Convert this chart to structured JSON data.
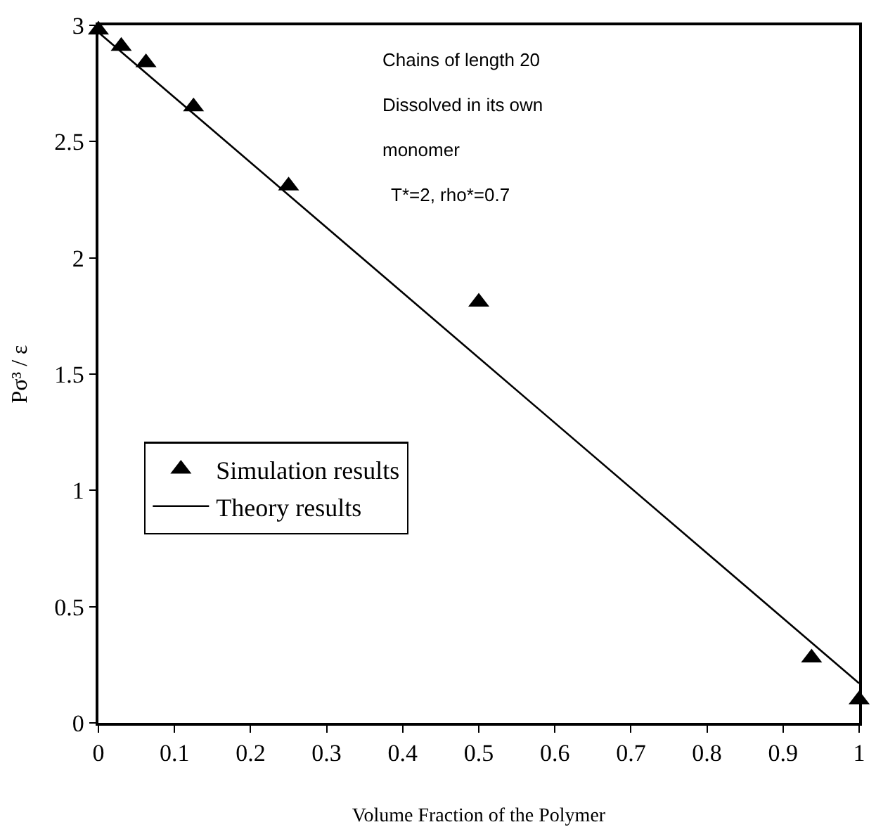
{
  "chart_data": {
    "type": "scatter",
    "xlabel": "Volume Fraction of the Polymer",
    "ylabel": "Pσ³ / ε",
    "xlim": [
      0,
      1
    ],
    "xticks": [
      0,
      0.1,
      0.2,
      0.3,
      0.4,
      0.5,
      0.6,
      0.7,
      0.8,
      0.9,
      1
    ],
    "ylim": [
      0,
      3
    ],
    "yticks": [
      0,
      0.5,
      1,
      1.5,
      2,
      2.5,
      3
    ],
    "legend": "bottom left",
    "annotations": [
      "Chains of length 20",
      "Dissolved in its own",
      "monomer",
      "T*=2, rho*=0.7"
    ],
    "series": [
      {
        "name": "Simulation results",
        "marker": "triangle",
        "color": "#000000",
        "x": [
          0,
          0.03,
          0.0625,
          0.125,
          0.25,
          0.5,
          0.9375,
          1
        ],
        "values": [
          2.98,
          2.91,
          2.84,
          2.65,
          2.31,
          1.81,
          0.28,
          0.1
        ]
      },
      {
        "name": "Theory results",
        "type": "line",
        "marker": "none",
        "line_style": "solid",
        "color": "#000000",
        "x": [
          0,
          1
        ],
        "values": [
          2.97,
          0.17
        ]
      }
    ]
  }
}
